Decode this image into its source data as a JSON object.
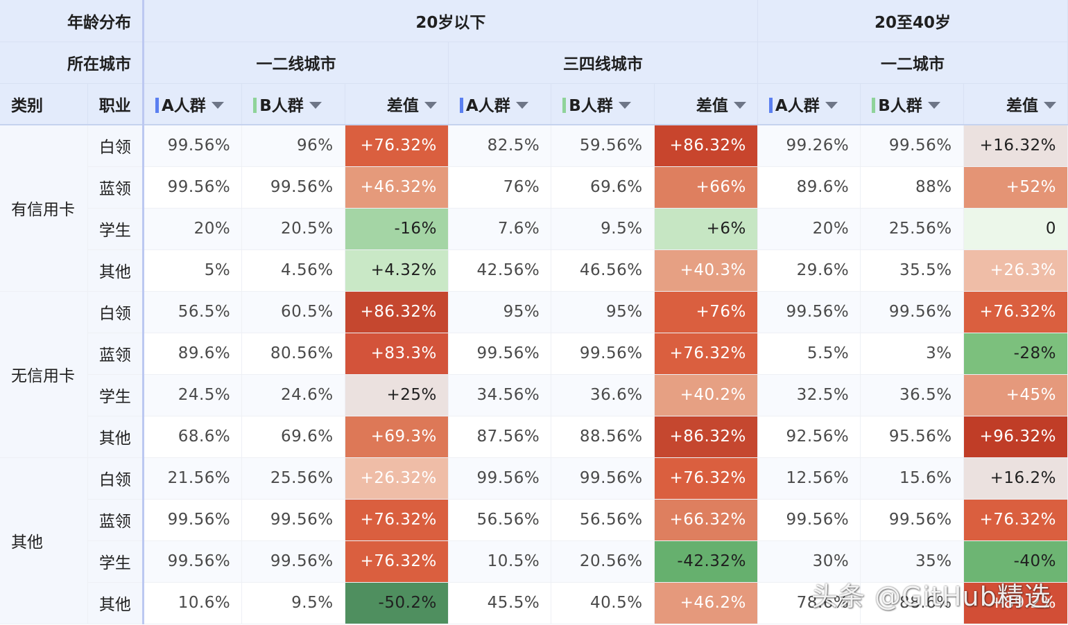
{
  "colors": {
    "header_bg": "#e3ebfb",
    "bar_a": "#5b7ff0",
    "bar_b": "#8fd39a"
  },
  "header": {
    "row1_label": "年龄分布",
    "row2_label": "所在城市",
    "row3_col1": "类别",
    "row3_col2": "职业",
    "age_groups": [
      "20岁以下",
      "20至40岁"
    ],
    "cities": [
      "一二线城市",
      "三四线城市",
      "一二城市"
    ],
    "measure_a": "A人群",
    "measure_b": "B人群",
    "measure_diff": "差值"
  },
  "groups": [
    {
      "name": "有信用卡",
      "rows": [
        {
          "occ": "白领",
          "vals": [
            "99.56%",
            "96%",
            "+76.32%",
            "82.5%",
            "59.56%",
            "+86.32%",
            "99.26%",
            "99.56%",
            "+16.32%"
          ],
          "heat": [
            "#da5f3f",
            "#c8452d",
            "#ebe1df"
          ],
          "heat_text": [
            "#ffffff",
            "#ffffff",
            "#1f1f1f"
          ]
        },
        {
          "occ": "蓝领",
          "vals": [
            "99.56%",
            "99.56%",
            "+46.32%",
            "76%",
            "69.6%",
            "+66%",
            "89.6%",
            "88%",
            "+52%"
          ],
          "heat": [
            "#e59a7b",
            "#de7f5f",
            "#e49475"
          ],
          "heat_text": [
            "#ffffff",
            "#ffffff",
            "#ffffff"
          ]
        },
        {
          "occ": "学生",
          "vals": [
            "20%",
            "20.5%",
            "-16%",
            "7.6%",
            "9.5%",
            "+6%",
            "20%",
            "25.56%",
            "0"
          ],
          "heat": [
            "#a4d5a5",
            "#c6e6c3",
            "#ecf7ea"
          ],
          "heat_text": [
            "#1f1f1f",
            "#1f1f1f",
            "#1f1f1f"
          ]
        },
        {
          "occ": "其他",
          "vals": [
            "5%",
            "4.56%",
            "+4.32%",
            "42.56%",
            "46.56%",
            "+40.3%",
            "29.6%",
            "35.5%",
            "+26.3%"
          ],
          "heat": [
            "#c9e8c6",
            "#e6a083",
            "#efbda7"
          ],
          "heat_text": [
            "#1f1f1f",
            "#ffffff",
            "#ffffff"
          ]
        }
      ]
    },
    {
      "name": "无信用卡",
      "rows": [
        {
          "occ": "白领",
          "vals": [
            "56.5%",
            "60.5%",
            "+86.32%",
            "95%",
            "95%",
            "+76%",
            "99.56%",
            "99.56%",
            "+76.32%"
          ],
          "heat": [
            "#c5472f",
            "#da5f3f",
            "#da5f3f"
          ],
          "heat_text": [
            "#ffffff",
            "#ffffff",
            "#ffffff"
          ]
        },
        {
          "occ": "蓝领",
          "vals": [
            "89.6%",
            "80.56%",
            "+83.3%",
            "99.56%",
            "99.56%",
            "+76.32%",
            "5.5%",
            "3%",
            "-28%"
          ],
          "heat": [
            "#d3533a",
            "#da5f3f",
            "#7cc07d"
          ],
          "heat_text": [
            "#ffffff",
            "#ffffff",
            "#1f1f1f"
          ]
        },
        {
          "occ": "学生",
          "vals": [
            "24.5%",
            "24.6%",
            "+25%",
            "34.56%",
            "36.6%",
            "+40.2%",
            "32.5%",
            "36.5%",
            "+45%"
          ],
          "heat": [
            "#ebe1df",
            "#e6a083",
            "#e5997c"
          ],
          "heat_text": [
            "#1f1f1f",
            "#ffffff",
            "#ffffff"
          ]
        },
        {
          "occ": "其他",
          "vals": [
            "68.6%",
            "69.6%",
            "+69.3%",
            "87.56%",
            "88.56%",
            "+86.32%",
            "92.56%",
            "95.56%",
            "+96.32%"
          ],
          "heat": [
            "#dd7857",
            "#c5472f",
            "#c03d27"
          ],
          "heat_text": [
            "#ffffff",
            "#ffffff",
            "#ffffff"
          ]
        }
      ]
    },
    {
      "name": "其他",
      "rows": [
        {
          "occ": "白领",
          "vals": [
            "21.56%",
            "25.56%",
            "+26.32%",
            "99.56%",
            "99.56%",
            "+76.32%",
            "12.56%",
            "15.6%",
            "+16.2%"
          ],
          "heat": [
            "#efbda7",
            "#da5f3f",
            "#ebe1df"
          ],
          "heat_text": [
            "#ffffff",
            "#ffffff",
            "#1f1f1f"
          ]
        },
        {
          "occ": "蓝领",
          "vals": [
            "99.56%",
            "99.56%",
            "+76.32%",
            "56.56%",
            "56.56%",
            "+66.32%",
            "99.56%",
            "99.56%",
            "+76.32%"
          ],
          "heat": [
            "#da5f3f",
            "#de7f5f",
            "#da5f3f"
          ],
          "heat_text": [
            "#ffffff",
            "#ffffff",
            "#ffffff"
          ]
        },
        {
          "occ": "学生",
          "vals": [
            "99.56%",
            "99.56%",
            "+76.32%",
            "10.5%",
            "20.56%",
            "-42.32%",
            "30%",
            "35%",
            "-40%"
          ],
          "heat": [
            "#da5f3f",
            "#66b06e",
            "#6db573"
          ],
          "heat_text": [
            "#ffffff",
            "#1f1f1f",
            "#1f1f1f"
          ]
        },
        {
          "occ": "其他",
          "vals": [
            "10.6%",
            "9.5%",
            "-50.2%",
            "45.5%",
            "40.5%",
            "+46.2%",
            "78.6%",
            "88.6%",
            "+89.2%"
          ],
          "heat": [
            "#4f8f5f",
            "#e5997c",
            "#d24e36"
          ],
          "heat_text": [
            "#1f1f1f",
            "#ffffff",
            "#ffffff"
          ]
        }
      ]
    }
  ],
  "watermark": "头条 @GitHub精选"
}
